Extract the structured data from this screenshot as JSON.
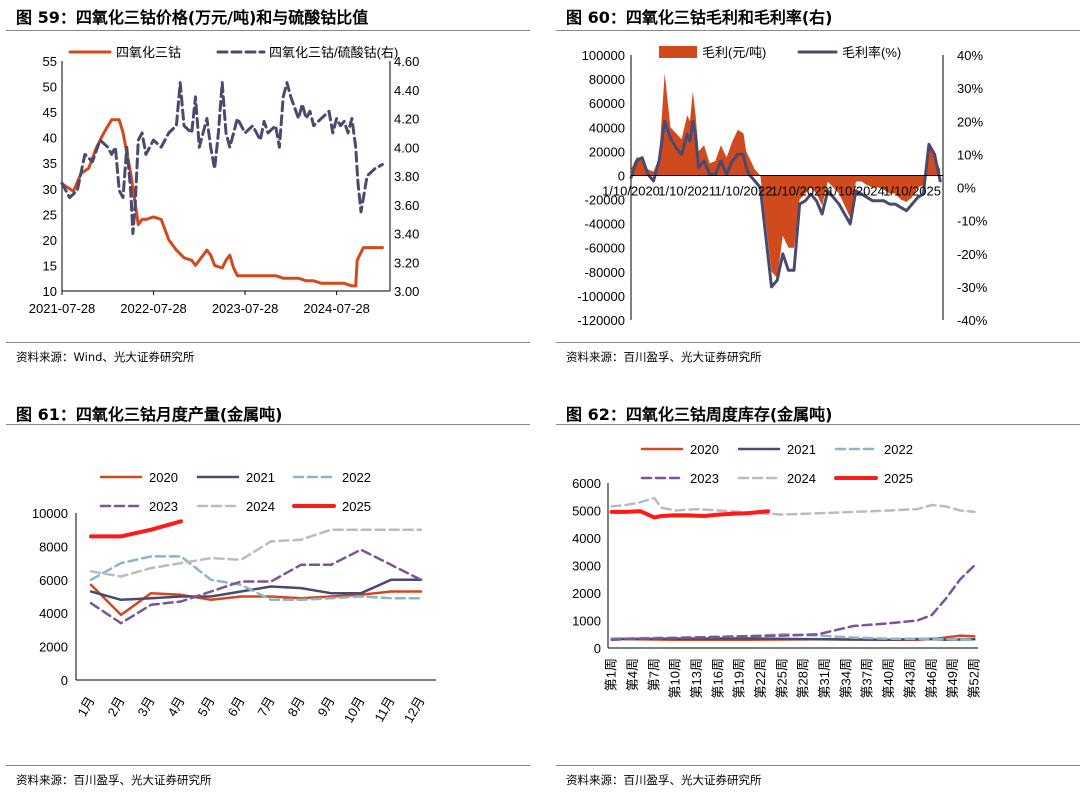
{
  "panels": [
    {
      "title": "图 59：四氧化三钴价格(万元/吨)和与硫酸钴比值",
      "source": "资料来源：Wind、光大证券研究所"
    },
    {
      "title": "图 60：四氧化三钴毛利和毛利率(右)",
      "source": "资料来源：百川盈孚、光大证券研究所"
    },
    {
      "title": "图 61：四氧化三钴月度产量(金属吨)",
      "source": "资料来源：百川盈孚、光大证券研究所"
    },
    {
      "title": "图 62：四氧化三钴周度库存(金属吨)",
      "source": "资料来源：百川盈孚、光大证券研究所"
    }
  ],
  "chart_data": [
    {
      "type": "line",
      "title": "四氧化三钴价格(万元/吨)和与硫酸钴比值",
      "x_tick_labels": [
        "2021-07-28",
        "2022-07-28",
        "2023-07-28",
        "2024-07-28"
      ],
      "y_left_ticks": [
        "55",
        "50",
        "45",
        "40",
        "35",
        "30",
        "25",
        "20",
        "15",
        "10"
      ],
      "y_right_ticks": [
        "4.60",
        "4.40",
        "4.20",
        "4.00",
        "3.80",
        "3.60",
        "3.40",
        "3.20",
        "3.00"
      ],
      "ylim_left": [
        10,
        55
      ],
      "ylim_right": [
        3.0,
        4.6
      ],
      "xlim_months": [
        0,
        43
      ],
      "series": [
        {
          "name": "四氧化三钴",
          "axis": "left",
          "color": "#d04a1e",
          "style": "solid",
          "x": [
            0,
            1.5,
            2.5,
            3.5,
            4.5,
            5.5,
            6.5,
            7.5,
            8,
            9,
            9.5,
            10,
            10.5,
            11,
            12,
            13,
            14,
            15,
            16,
            17,
            17.5,
            18,
            19,
            19.5,
            20,
            21,
            21.5,
            22,
            22.5,
            23,
            24,
            25,
            26,
            27,
            28,
            29,
            30,
            31,
            32,
            33,
            34,
            35,
            36,
            37,
            38,
            38.5,
            38.7,
            39.5,
            40.5,
            42
          ],
          "y": [
            31,
            29.5,
            33,
            34,
            38,
            41,
            43.5,
            43.5,
            41,
            33,
            28,
            23,
            24,
            24,
            24.5,
            24,
            20,
            18,
            16.5,
            16,
            15,
            16,
            18,
            17,
            15,
            14.5,
            16,
            17,
            14.5,
            13,
            13,
            13,
            13,
            13,
            13,
            12.5,
            12.5,
            12.5,
            12,
            12,
            11.5,
            11.5,
            11.5,
            11.5,
            11,
            11,
            16,
            18.5,
            18.5,
            18.5
          ]
        },
        {
          "name": "四氧化三钴/硫酸钴(右)",
          "axis": "right",
          "color": "#4a4a6e",
          "style": "dashed",
          "x": [
            0,
            1,
            2,
            3,
            4,
            5,
            6,
            6.5,
            7,
            7.5,
            8,
            8.5,
            9,
            9.3,
            9.6,
            10,
            10.5,
            11,
            12,
            13,
            14,
            15,
            15.5,
            16,
            17,
            17.5,
            18,
            19,
            19.5,
            20,
            20.5,
            21,
            21.5,
            22,
            23,
            24,
            25,
            26,
            26.5,
            27,
            28,
            28.5,
            29,
            29.5,
            30,
            31,
            31.5,
            32,
            32.5,
            33,
            34,
            35,
            35.5,
            36,
            36.5,
            37,
            37.5,
            38,
            38.5,
            38.8,
            39.2,
            40,
            41,
            42
          ],
          "y": [
            3.75,
            3.65,
            3.7,
            3.95,
            3.9,
            4.05,
            4.0,
            3.95,
            4.0,
            3.7,
            3.65,
            4.0,
            3.7,
            3.4,
            3.6,
            4.05,
            4.1,
            3.95,
            4.05,
            4.0,
            4.1,
            4.15,
            4.45,
            4.15,
            4.1,
            4.35,
            4.0,
            4.2,
            4.0,
            3.85,
            4.1,
            4.45,
            4.1,
            4.0,
            4.2,
            4.1,
            4.15,
            4.05,
            4.18,
            4.1,
            4.15,
            4.0,
            4.35,
            4.45,
            4.35,
            4.2,
            4.3,
            4.2,
            4.25,
            4.15,
            4.2,
            4.25,
            4.1,
            4.2,
            4.15,
            4.18,
            4.1,
            4.2,
            4.0,
            3.75,
            3.55,
            3.8,
            3.85,
            3.88
          ]
        }
      ]
    },
    {
      "type": "area+line",
      "title": "四氧化三钴毛利和毛利率(右)",
      "x_tick_labels": [
        "1/10/2020",
        "1/10/2021",
        "1/10/2022",
        "1/10/2023",
        "1/10/2024",
        "1/10/2025"
      ],
      "y_left_ticks": [
        "100000",
        "80000",
        "60000",
        "40000",
        "20000",
        "0",
        "-20000",
        "-40000",
        "-60000",
        "-80000",
        "-100000",
        "-120000"
      ],
      "y_right_ticks": [
        "40%",
        "30%",
        "20%",
        "10%",
        "0%",
        "-10%",
        "-20%",
        "-30%",
        "-40%"
      ],
      "ylim_left": [
        -120000,
        100000
      ],
      "ylim_right": [
        -40,
        40
      ],
      "xlim_years": [
        2020,
        2025.55
      ],
      "series": [
        {
          "name": "毛利(元/吨)",
          "axis": "left",
          "kind": "area",
          "color": "#d04a1e",
          "x": [
            2020.0,
            2020.1,
            2020.2,
            2020.3,
            2020.4,
            2020.5,
            2020.6,
            2020.7,
            2020.8,
            2020.9,
            2021.0,
            2021.05,
            2021.1,
            2021.15,
            2021.2,
            2021.3,
            2021.4,
            2021.5,
            2021.6,
            2021.7,
            2021.8,
            2021.9,
            2022.0,
            2022.05,
            2022.1,
            2022.2,
            2022.3,
            2022.4,
            2022.5,
            2022.6,
            2022.7,
            2022.8,
            2022.9,
            2023.0,
            2023.1,
            2023.2,
            2023.3,
            2023.4,
            2023.5,
            2023.6,
            2023.7,
            2023.8,
            2023.9,
            2024.0,
            2024.1,
            2024.2,
            2024.3,
            2024.4,
            2024.5,
            2024.6,
            2024.7,
            2024.8,
            2024.9,
            2025.0,
            2025.1,
            2025.2,
            2025.3,
            2025.4,
            2025.5
          ],
          "y": [
            5000,
            15000,
            15000,
            5000,
            3000,
            15000,
            85000,
            40000,
            35000,
            30000,
            50000,
            45000,
            70000,
            50000,
            20000,
            25000,
            10000,
            12000,
            25000,
            15000,
            28000,
            38000,
            35000,
            20000,
            15000,
            5000,
            0,
            -40000,
            -80000,
            -85000,
            -50000,
            -60000,
            -60000,
            -20000,
            -15000,
            -10000,
            -15000,
            -25000,
            -5000,
            -10000,
            -15000,
            -25000,
            -35000,
            -5000,
            -5000,
            -8000,
            -10000,
            -10000,
            -12000,
            -15000,
            -15000,
            -20000,
            -22000,
            -18000,
            -10000,
            -8000,
            25000,
            15000,
            5000
          ]
        },
        {
          "name": "毛利率(%)",
          "axis": "right",
          "kind": "line",
          "color": "#4a4a6e",
          "x": [
            2020.0,
            2020.1,
            2020.2,
            2020.3,
            2020.4,
            2020.5,
            2020.6,
            2020.7,
            2020.8,
            2020.9,
            2021.0,
            2021.05,
            2021.1,
            2021.15,
            2021.2,
            2021.3,
            2021.4,
            2021.5,
            2021.6,
            2021.7,
            2021.8,
            2021.9,
            2022.0,
            2022.05,
            2022.1,
            2022.2,
            2022.3,
            2022.4,
            2022.5,
            2022.6,
            2022.7,
            2022.8,
            2022.9,
            2023.0,
            2023.1,
            2023.2,
            2023.3,
            2023.4,
            2023.5,
            2023.6,
            2023.7,
            2023.8,
            2023.9,
            2024.0,
            2024.1,
            2024.2,
            2024.3,
            2024.4,
            2024.5,
            2024.6,
            2024.7,
            2024.8,
            2024.9,
            2025.0,
            2025.1,
            2025.2,
            2025.3,
            2025.4,
            2025.5
          ],
          "y": [
            3,
            8,
            9,
            4,
            2,
            8,
            20,
            15,
            12,
            10,
            16,
            14,
            20,
            16,
            6,
            8,
            4,
            4,
            8,
            4,
            8,
            10,
            10,
            6,
            4,
            2,
            0,
            -15,
            -30,
            -28,
            -20,
            -25,
            -25,
            -5,
            -4,
            -2,
            -4,
            -8,
            -1,
            -3,
            -5,
            -8,
            -11,
            -1,
            -2,
            -3,
            -4,
            -4,
            -4,
            -5,
            -5,
            -6,
            -7,
            -5,
            -3,
            -2,
            13,
            10,
            2
          ]
        }
      ]
    },
    {
      "type": "line",
      "title": "四氧化三钴月度产量(金属吨)",
      "categories": [
        "1月",
        "2月",
        "3月",
        "4月",
        "5月",
        "6月",
        "7月",
        "8月",
        "9月",
        "10月",
        "11月",
        "12月"
      ],
      "y_ticks": [
        "10000",
        "8000",
        "6000",
        "4000",
        "2000",
        "0"
      ],
      "ylim": [
        0,
        10000
      ],
      "series": [
        {
          "name": "2020",
          "color": "#d04a1e",
          "style": "solid",
          "width": 2.5,
          "values": [
            5700,
            3900,
            5200,
            5100,
            4800,
            5000,
            5000,
            4900,
            5000,
            5100,
            5300,
            5300
          ]
        },
        {
          "name": "2021",
          "color": "#4a4a6e",
          "style": "solid",
          "width": 2.5,
          "values": [
            5300,
            4800,
            4900,
            5000,
            5000,
            5300,
            5600,
            5500,
            5200,
            5200,
            6000,
            6000
          ]
        },
        {
          "name": "2022",
          "color": "#8eb4c8",
          "style": "dashed",
          "width": 2.5,
          "values": [
            6000,
            7000,
            7400,
            7400,
            6000,
            5700,
            4800,
            4800,
            4900,
            5000,
            4900,
            4900
          ]
        },
        {
          "name": "2023",
          "color": "#7b5596",
          "style": "dashed",
          "width": 2.5,
          "values": [
            4600,
            3400,
            4500,
            4700,
            5300,
            5900,
            5900,
            6900,
            6900,
            7800,
            6900,
            6000
          ]
        },
        {
          "name": "2024",
          "color": "#bcbcbc",
          "style": "dashed",
          "width": 2.5,
          "values": [
            6500,
            6200,
            6700,
            7000,
            7300,
            7200,
            8300,
            8400,
            9000,
            9000,
            9000,
            9000
          ]
        },
        {
          "name": "2025",
          "color": "#ff1a1a",
          "style": "solid",
          "width": 4,
          "values": [
            8600,
            8600,
            9000,
            9500,
            null,
            null,
            null,
            null,
            null,
            null,
            null,
            null
          ]
        }
      ]
    },
    {
      "type": "line",
      "title": "四氧化三钴周度库存(金属吨)",
      "categories": [
        "第1周",
        "第4周",
        "第7周",
        "第10周",
        "第13周",
        "第16周",
        "第19周",
        "第22周",
        "第25周",
        "第28周",
        "第31周",
        "第34周",
        "第37周",
        "第40周",
        "第43周",
        "第46周",
        "第49周",
        "第52周"
      ],
      "y_ticks": [
        "6000",
        "5000",
        "4000",
        "3000",
        "2000",
        "1000",
        "0"
      ],
      "ylim": [
        0,
        6000
      ],
      "series": [
        {
          "name": "2020",
          "color": "#d04a1e",
          "style": "solid",
          "width": 2.5,
          "x": [
            1,
            10,
            20,
            30,
            40,
            44,
            47,
            50,
            52
          ],
          "values": [
            330,
            300,
            300,
            320,
            300,
            300,
            350,
            450,
            420
          ]
        },
        {
          "name": "2021",
          "color": "#4a4a6e",
          "style": "solid",
          "width": 2.5,
          "x": [
            1,
            10,
            20,
            30,
            40,
            45,
            48,
            50,
            52
          ],
          "values": [
            330,
            340,
            350,
            320,
            300,
            330,
            300,
            310,
            320
          ]
        },
        {
          "name": "2022",
          "color": "#8eb4c8",
          "style": "dashed",
          "width": 2.5,
          "x": [
            1,
            10,
            20,
            25,
            30,
            35,
            40,
            45,
            52
          ],
          "values": [
            350,
            380,
            420,
            500,
            450,
            380,
            340,
            330,
            300
          ]
        },
        {
          "name": "2023",
          "color": "#7b5596",
          "style": "dashed",
          "width": 2.5,
          "x": [
            1,
            5,
            10,
            15,
            20,
            25,
            30,
            35,
            40,
            44,
            46,
            48,
            50,
            52
          ],
          "values": [
            300,
            340,
            360,
            400,
            430,
            450,
            500,
            800,
            900,
            1000,
            1200,
            1800,
            2500,
            3000
          ]
        },
        {
          "name": "2024",
          "color": "#bcbcbc",
          "style": "dashed",
          "width": 2.5,
          "x": [
            1,
            3,
            5,
            7,
            8,
            10,
            13,
            16,
            19,
            22,
            25,
            30,
            35,
            40,
            44,
            46,
            48,
            50,
            52
          ],
          "values": [
            5150,
            5200,
            5300,
            5450,
            5100,
            5000,
            5050,
            5000,
            4950,
            4900,
            4850,
            4900,
            4950,
            5000,
            5050,
            5200,
            5150,
            5000,
            4950
          ]
        },
        {
          "name": "2025",
          "color": "#ff1a1a",
          "style": "solid",
          "width": 4,
          "x": [
            1,
            3,
            5,
            7,
            8,
            10,
            12,
            14,
            16,
            18,
            20,
            22,
            23
          ],
          "values": [
            4950,
            4950,
            4980,
            4750,
            4800,
            4830,
            4820,
            4800,
            4850,
            4880,
            4900,
            4950,
            4970
          ]
        }
      ]
    }
  ]
}
